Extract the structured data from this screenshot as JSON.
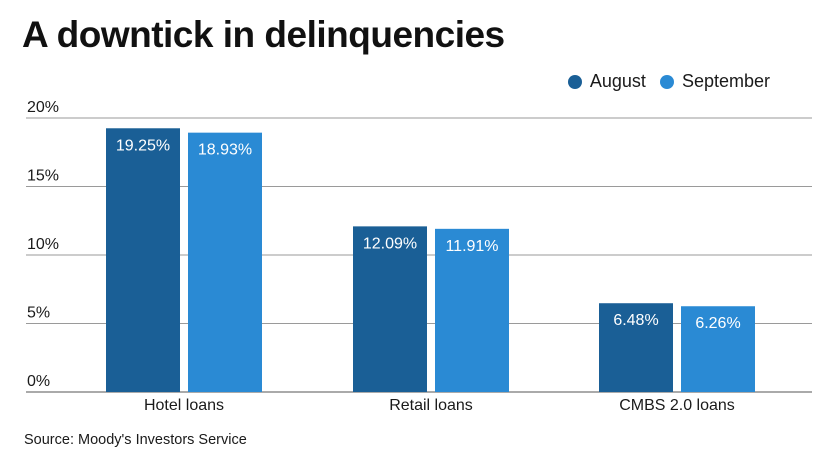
{
  "title": "A downtick in delinquencies",
  "source": "Source: Moody's Investors Service",
  "chart_data": {
    "type": "bar",
    "title": "A downtick in delinquencies",
    "categories": [
      "Hotel loans",
      "Retail loans",
      "CMBS 2.0 loans"
    ],
    "series": [
      {
        "name": "August",
        "values": [
          19.25,
          12.09,
          6.48
        ],
        "labels": [
          "19.25%",
          "12.09%",
          "6.48%"
        ],
        "color": "#1a5f96"
      },
      {
        "name": "September",
        "values": [
          18.93,
          11.91,
          6.26
        ],
        "labels": [
          "18.93%",
          "11.91%",
          "6.26%"
        ],
        "color": "#2a8ad4"
      }
    ],
    "yticks": [
      0,
      5,
      10,
      15,
      20
    ],
    "ytick_labels": [
      "0%",
      "5%",
      "10%",
      "15%",
      "20%"
    ],
    "ylim": [
      0,
      20
    ],
    "grid": true,
    "legend_position": "top-right",
    "gridline_color": "#9a9a9a",
    "label_color": "#ffffff"
  }
}
